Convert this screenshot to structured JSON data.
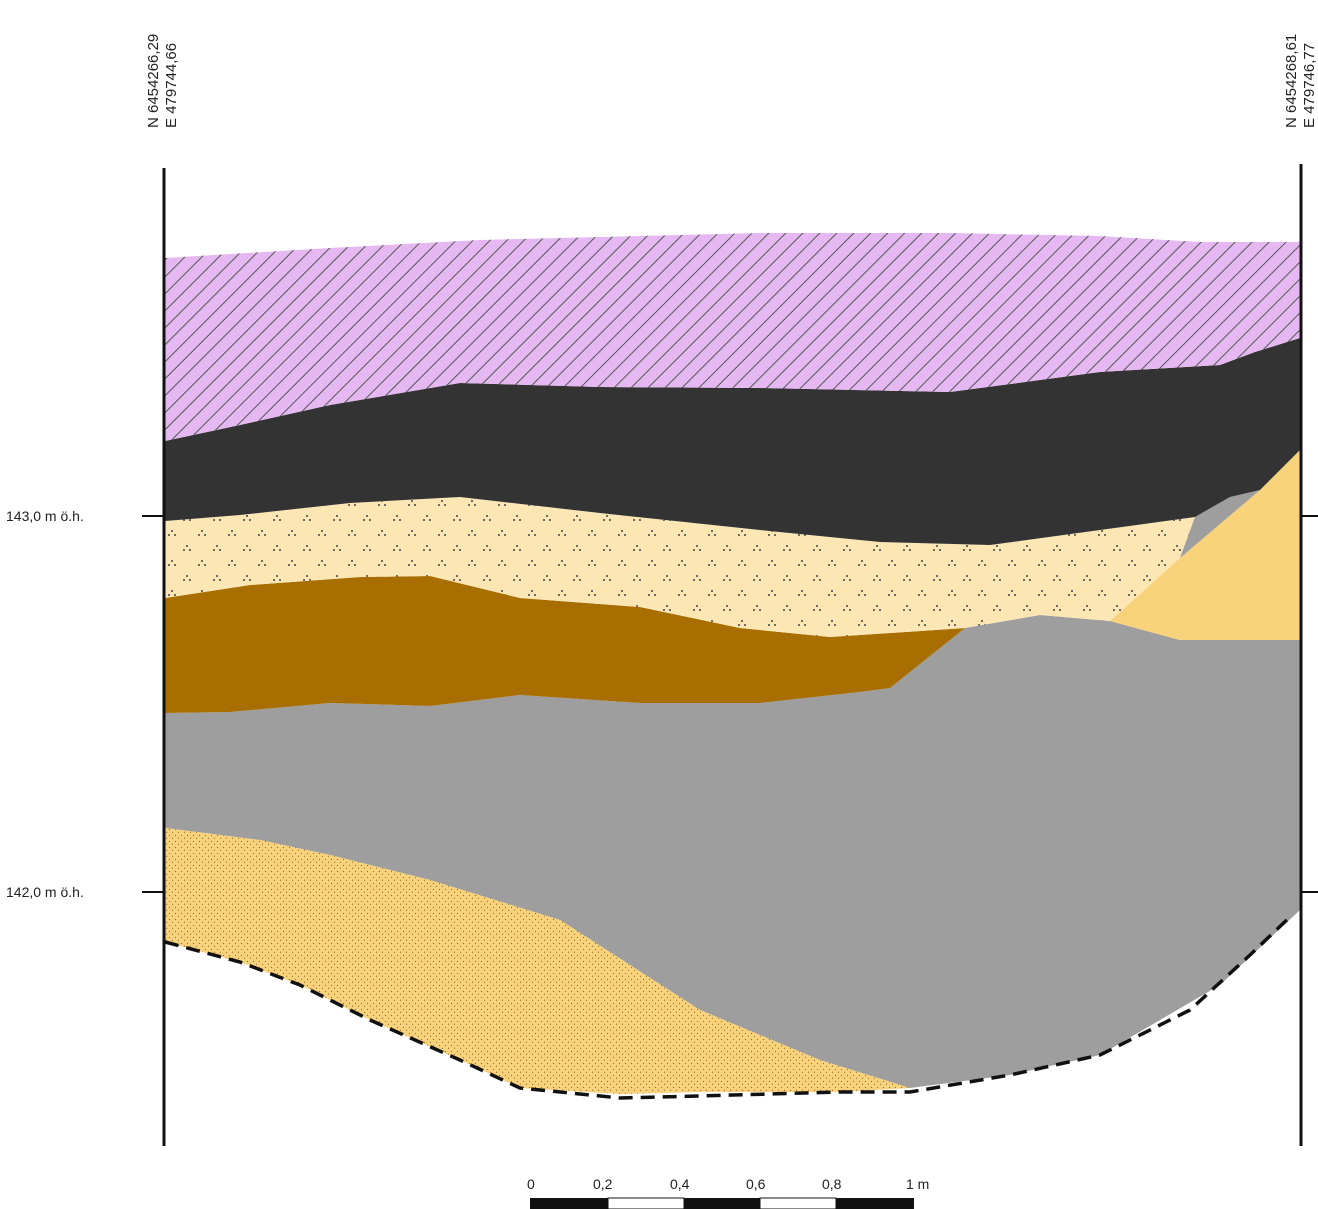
{
  "section": {
    "left_coords": [
      "N 6454266,29",
      "E 479744,66"
    ],
    "right_coords": [
      "N 6454268,61",
      "E 479746,77"
    ],
    "elevation_labels": [
      "143,0 m ö.h.",
      "142,0 m ö.h."
    ]
  },
  "layers": [
    {
      "key": "topsoil",
      "color": "#e5b8f2",
      "pattern": "diagonal-hatch"
    },
    {
      "key": "dark",
      "color": "#333333",
      "pattern": "solid"
    },
    {
      "key": "pale-sand",
      "color": "#fbe6b4",
      "pattern": "dotted-triangles"
    },
    {
      "key": "brown",
      "color": "#a86f00",
      "pattern": "solid"
    },
    {
      "key": "grey",
      "color": "#9e9e9e",
      "pattern": "solid"
    },
    {
      "key": "orange-sand",
      "color": "#f9d27c",
      "pattern": "solid"
    },
    {
      "key": "speckled-sand",
      "color": "#f9d27c",
      "pattern": "fine-dots"
    }
  ],
  "scale": {
    "labels": [
      "0",
      "0,2",
      "0,4",
      "0,6",
      "0,8",
      "1 m"
    ]
  }
}
